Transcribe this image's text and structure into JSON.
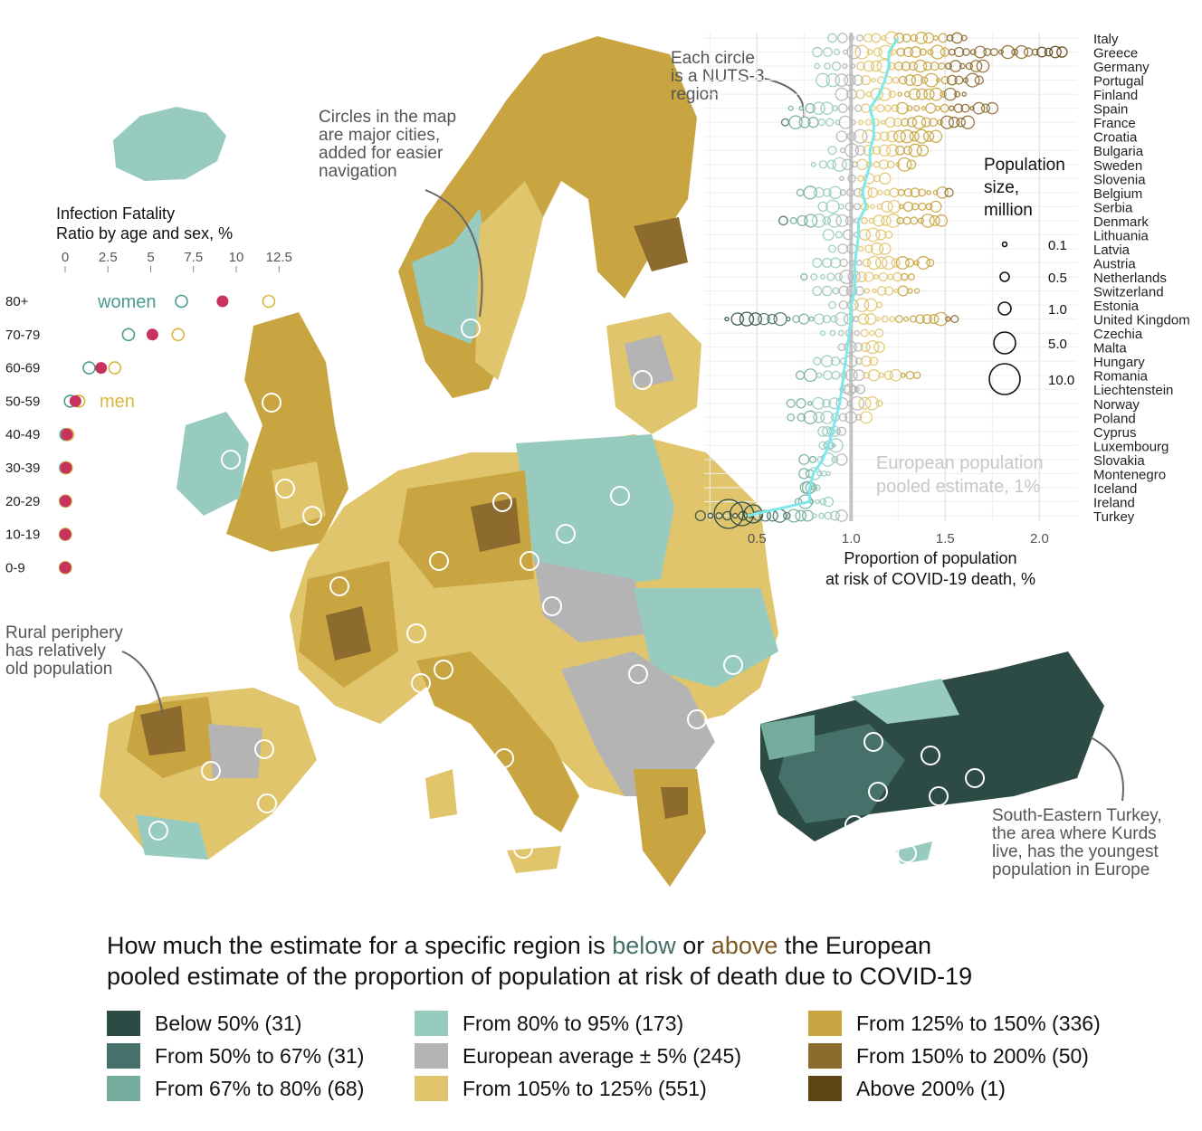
{
  "annotations": {
    "nuts3": "Each circle\nis a NUTS-3\nregion",
    "cities": "Circles in the map\nare major cities,\nadded for easier\nnavigation",
    "rural": "Rural periphery\nhas relatively\nold population",
    "turkey": "South-Eastern Turkey,\nthe area where Kurds\nlive, has the youngest\npopulation in Europe"
  },
  "ifr_chart": {
    "title_line1": "Infection Fatality",
    "title_line2": "Ratio by age and sex, %",
    "ticks": [
      "0",
      "2.5",
      "5",
      "7.5",
      "10",
      "12.5"
    ],
    "age_groups": [
      "80+",
      "70-79",
      "60-69",
      "50-59",
      "40-49",
      "30-39",
      "20-29",
      "10-19",
      "0-9"
    ],
    "women_label": "women",
    "men_label": "men",
    "colors": {
      "women": "#4a9a90",
      "men": "#d9b73a",
      "pooled": "#c8325e"
    },
    "women": [
      6.8,
      3.7,
      1.4,
      0.3,
      0.05,
      0.02,
      0.01,
      0.005,
      0.005
    ],
    "pooled": [
      9.2,
      5.1,
      2.1,
      0.6,
      0.1,
      0.05,
      0.02,
      0.01,
      0.01
    ],
    "men": [
      11.9,
      6.6,
      2.9,
      0.8,
      0.15,
      0.07,
      0.03,
      0.015,
      0.015
    ]
  },
  "chart_data": {
    "type": "scatter",
    "xlabel_line1": "Proportion of population",
    "xlabel_line2": "at risk of COVID-19 death, %",
    "x_ticks": [
      "0.5",
      "1.0",
      "1.5",
      "2.0"
    ],
    "xlim": [
      0.22,
      2.2
    ],
    "reference_label_line1": "European population",
    "reference_label_line2": "pooled estimate, 1%",
    "reference_value": 1.0,
    "size_legend": {
      "title_line1": "Population",
      "title_line2": "size,",
      "title_line3": "million",
      "values": [
        "0.1",
        "0.5",
        "1.0",
        "5.0",
        "10.0"
      ]
    },
    "countries": [
      {
        "name": "Italy",
        "min": 0.9,
        "max": 1.6,
        "median": 1.25
      },
      {
        "name": "Greece",
        "min": 0.82,
        "max": 2.12,
        "median": 1.2
      },
      {
        "name": "Germany",
        "min": 0.82,
        "max": 1.7,
        "median": 1.2
      },
      {
        "name": "Portugal",
        "min": 0.85,
        "max": 1.68,
        "median": 1.18
      },
      {
        "name": "Finland",
        "min": 0.95,
        "max": 1.6,
        "median": 1.15
      },
      {
        "name": "Spain",
        "min": 0.68,
        "max": 1.75,
        "median": 1.1
      },
      {
        "name": "France",
        "min": 0.65,
        "max": 1.62,
        "median": 1.12
      },
      {
        "name": "Croatia",
        "min": 0.95,
        "max": 1.45,
        "median": 1.12
      },
      {
        "name": "Bulgaria",
        "min": 0.9,
        "max": 1.38,
        "median": 1.1
      },
      {
        "name": "Sweden",
        "min": 0.8,
        "max": 1.32,
        "median": 1.1
      },
      {
        "name": "Slovenia",
        "min": 0.95,
        "max": 1.18,
        "median": 1.08
      },
      {
        "name": "Belgium",
        "min": 0.73,
        "max": 1.52,
        "median": 1.06
      },
      {
        "name": "Serbia",
        "min": 0.85,
        "max": 1.45,
        "median": 1.08
      },
      {
        "name": "Denmark",
        "min": 0.64,
        "max": 1.48,
        "median": 1.04
      },
      {
        "name": "Lithuania",
        "min": 0.88,
        "max": 1.2,
        "median": 1.04
      },
      {
        "name": "Latvia",
        "min": 0.9,
        "max": 1.18,
        "median": 1.03
      },
      {
        "name": "Austria",
        "min": 0.82,
        "max": 1.42,
        "median": 1.02
      },
      {
        "name": "Netherlands",
        "min": 0.75,
        "max": 1.32,
        "median": 1.02
      },
      {
        "name": "Switzerland",
        "min": 0.82,
        "max": 1.35,
        "median": 1.02
      },
      {
        "name": "Estonia",
        "min": 0.9,
        "max": 1.15,
        "median": 1.0
      },
      {
        "name": "United Kingdom",
        "min": 0.34,
        "max": 1.55,
        "median": 1.0
      },
      {
        "name": "Czechia",
        "min": 0.85,
        "max": 1.15,
        "median": 0.99
      },
      {
        "name": "Malta",
        "min": 0.95,
        "max": 1.15,
        "median": 0.98
      },
      {
        "name": "Hungary",
        "min": 0.82,
        "max": 1.12,
        "median": 0.97
      },
      {
        "name": "Romania",
        "min": 0.73,
        "max": 1.35,
        "median": 0.96
      },
      {
        "name": "Liechtenstein",
        "min": 0.95,
        "max": 1.05,
        "median": 0.95
      },
      {
        "name": "Norway",
        "min": 0.68,
        "max": 1.15,
        "median": 0.94
      },
      {
        "name": "Poland",
        "min": 0.68,
        "max": 1.08,
        "median": 0.92
      },
      {
        "name": "Cyprus",
        "min": 0.85,
        "max": 0.95,
        "median": 0.9
      },
      {
        "name": "Luxembourg",
        "min": 0.85,
        "max": 0.92,
        "median": 0.88
      },
      {
        "name": "Slovakia",
        "min": 0.75,
        "max": 0.95,
        "median": 0.85
      },
      {
        "name": "Montenegro",
        "min": 0.75,
        "max": 0.88,
        "median": 0.8
      },
      {
        "name": "Iceland",
        "min": 0.76,
        "max": 0.82,
        "median": 0.78
      },
      {
        "name": "Ireland",
        "min": 0.72,
        "max": 0.88,
        "median": 0.78
      },
      {
        "name": "Turkey",
        "min": 0.2,
        "max": 0.95,
        "median": 0.45
      }
    ]
  },
  "legend": {
    "title_part1": "How much the estimate for a specific region is ",
    "title_below": "below",
    "title_or": " or ",
    "title_above": "above",
    "title_part2": " the European",
    "title_line2": "pooled estimate of the proportion of population at risk of death due to COVID-19",
    "items": [
      {
        "label": "Below 50% (31)",
        "color": "#2c4b45"
      },
      {
        "label": "From 50% to 67% (31)",
        "color": "#46716a"
      },
      {
        "label": "From 67% to 80% (68)",
        "color": "#74ad9e"
      },
      {
        "label": "From 80% to 95% (173)",
        "color": "#98cbbf"
      },
      {
        "label": "European average ± 5% (245)",
        "color": "#b4b4b4"
      },
      {
        "label": "From 105% to 125% (551)",
        "color": "#e1c56c"
      },
      {
        "label": "From 125% to 150% (336)",
        "color": "#c8a540"
      },
      {
        "label": "From 150% to 200% (50)",
        "color": "#8d6a2d"
      },
      {
        "label": "Above 200% (1)",
        "color": "#5e4415"
      }
    ]
  }
}
